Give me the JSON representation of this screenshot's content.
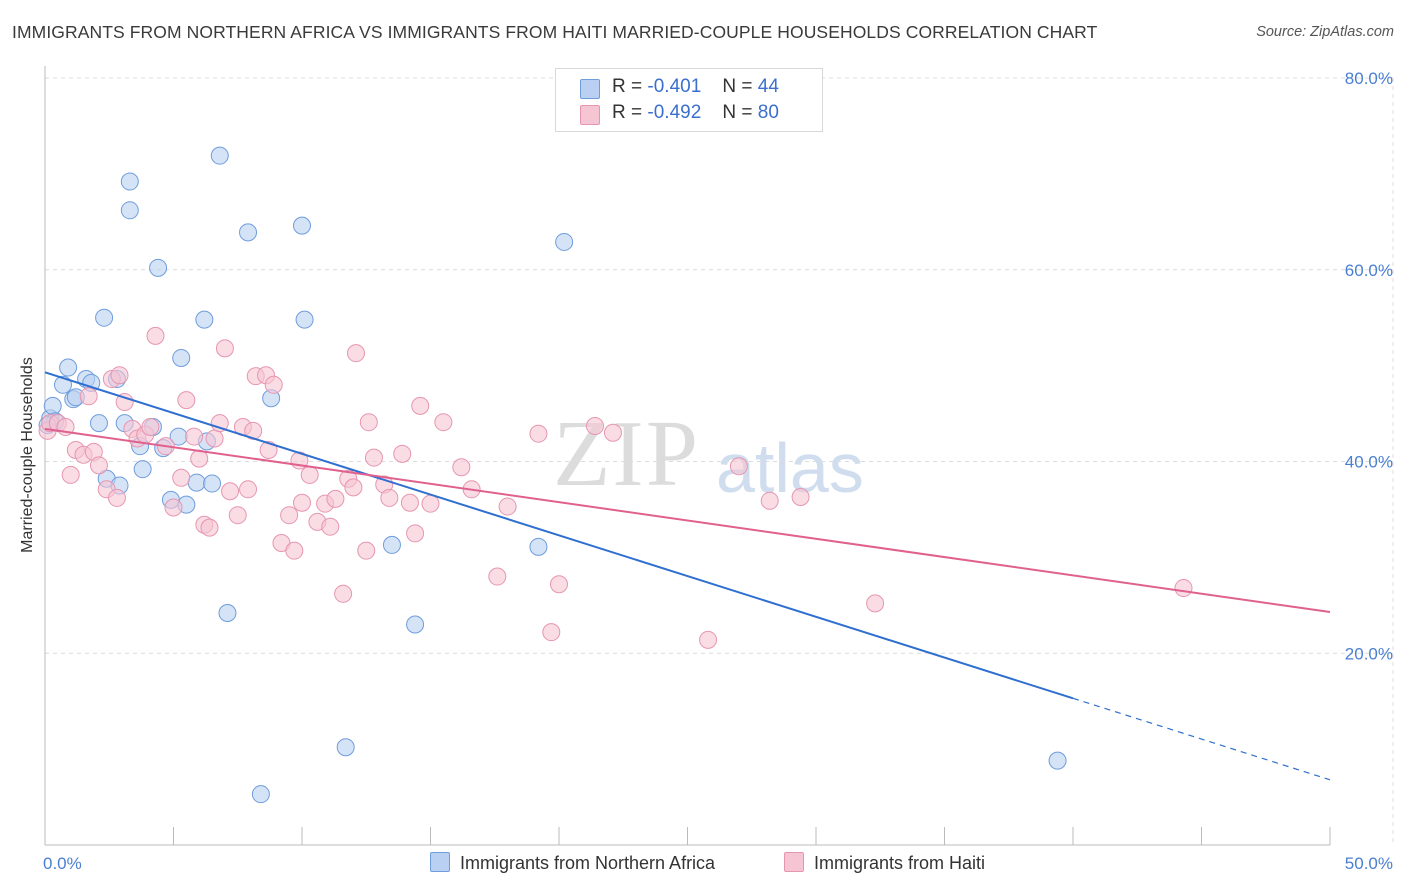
{
  "title": "IMMIGRANTS FROM NORTHERN AFRICA VS IMMIGRANTS FROM HAITI MARRIED-COUPLE HOUSEHOLDS CORRELATION CHART",
  "source": "Source: ZipAtlas.com",
  "watermark": {
    "part1": "ZIP",
    "part2": "atlas"
  },
  "legend_top": {
    "rows": [
      {
        "r_label": "R =",
        "r_value": "-0.401",
        "n_label": "N =",
        "n_value": "44"
      },
      {
        "r_label": "R =",
        "r_value": "-0.492",
        "n_label": "N =",
        "n_value": "80"
      }
    ]
  },
  "colors": {
    "blue_fill": "#b9d0f2",
    "blue_stroke": "#6f9ddc",
    "blue_line": "#2f6fd0",
    "pink_fill": "#f6c5d4",
    "pink_stroke": "#e696b0",
    "pink_line": "#e0608e",
    "tick_label": "#4a7fd0",
    "grid": "#dcdcdc"
  },
  "chart_data": {
    "type": "scatter",
    "xlabel": "",
    "ylabel": "Married-couple Households",
    "xlim": [
      0,
      50
    ],
    "ylim": [
      0,
      80
    ],
    "x_tick_labels": [
      "0.0%",
      "50.0%"
    ],
    "y_ticks": [
      20,
      40,
      60,
      80
    ],
    "y_tick_labels": [
      "20.0%",
      "40.0%",
      "60.0%",
      "80.0%"
    ],
    "x_minor_ticks": [
      0,
      5,
      10,
      15,
      20,
      25,
      30,
      35,
      40,
      45,
      50
    ],
    "grid": true,
    "legend_position": "bottom",
    "series": [
      {
        "name": "Immigrants from Northern Africa",
        "color": "blue",
        "points": [
          [
            0.2,
            44.5
          ],
          [
            0.3,
            45.8
          ],
          [
            0.4,
            44.2
          ],
          [
            0.7,
            48.0
          ],
          [
            0.9,
            49.8
          ],
          [
            1.1,
            46.5
          ],
          [
            1.2,
            46.7
          ],
          [
            1.6,
            48.6
          ],
          [
            1.8,
            48.2
          ],
          [
            2.1,
            44.0
          ],
          [
            2.3,
            55.0
          ],
          [
            2.4,
            38.2
          ],
          [
            2.8,
            48.6
          ],
          [
            2.9,
            37.5
          ],
          [
            3.1,
            44.0
          ],
          [
            3.3,
            69.2
          ],
          [
            3.3,
            66.2
          ],
          [
            3.7,
            41.6
          ],
          [
            3.8,
            39.2
          ],
          [
            4.2,
            43.6
          ],
          [
            4.4,
            60.2
          ],
          [
            4.6,
            41.4
          ],
          [
            4.9,
            36.0
          ],
          [
            5.2,
            42.6
          ],
          [
            5.3,
            50.8
          ],
          [
            5.5,
            35.5
          ],
          [
            5.9,
            37.8
          ],
          [
            6.2,
            54.8
          ],
          [
            6.3,
            42.1
          ],
          [
            6.5,
            37.7
          ],
          [
            6.8,
            71.9
          ],
          [
            7.1,
            24.2
          ],
          [
            7.9,
            63.9
          ],
          [
            8.4,
            5.3
          ],
          [
            8.8,
            46.6
          ],
          [
            10.0,
            64.6
          ],
          [
            10.1,
            54.8
          ],
          [
            11.7,
            10.2
          ],
          [
            13.5,
            31.3
          ],
          [
            14.4,
            23.0
          ],
          [
            19.2,
            31.1
          ],
          [
            20.2,
            62.9
          ],
          [
            39.4,
            8.8
          ],
          [
            0.1,
            43.8
          ]
        ],
        "trend": {
          "x0": 0,
          "y0": 49.3,
          "x1": 40.0,
          "y1": 15.3,
          "dash_to_x": 50,
          "dash_to_y": 6.8
        }
      },
      {
        "name": "Immigrants from Haiti",
        "color": "pink",
        "points": [
          [
            0.1,
            43.2
          ],
          [
            0.2,
            44.0
          ],
          [
            0.5,
            44.0
          ],
          [
            0.8,
            43.6
          ],
          [
            1.0,
            38.6
          ],
          [
            1.2,
            41.2
          ],
          [
            1.5,
            40.7
          ],
          [
            1.7,
            46.8
          ],
          [
            1.9,
            41.0
          ],
          [
            2.1,
            39.6
          ],
          [
            2.4,
            37.1
          ],
          [
            2.6,
            48.6
          ],
          [
            2.9,
            49.0
          ],
          [
            3.1,
            46.2
          ],
          [
            3.4,
            43.4
          ],
          [
            3.6,
            42.4
          ],
          [
            3.9,
            42.8
          ],
          [
            4.1,
            43.6
          ],
          [
            4.3,
            53.1
          ],
          [
            4.7,
            41.6
          ],
          [
            5.0,
            35.2
          ],
          [
            5.3,
            38.3
          ],
          [
            5.5,
            46.4
          ],
          [
            5.8,
            42.6
          ],
          [
            6.0,
            40.3
          ],
          [
            6.2,
            33.4
          ],
          [
            6.4,
            33.1
          ],
          [
            6.6,
            42.4
          ],
          [
            6.8,
            44.0
          ],
          [
            7.0,
            51.8
          ],
          [
            7.2,
            36.9
          ],
          [
            7.5,
            34.4
          ],
          [
            7.7,
            43.6
          ],
          [
            7.9,
            37.1
          ],
          [
            8.1,
            43.2
          ],
          [
            8.2,
            48.9
          ],
          [
            8.6,
            49.0
          ],
          [
            8.7,
            41.2
          ],
          [
            8.9,
            48.0
          ],
          [
            9.2,
            31.5
          ],
          [
            9.5,
            34.4
          ],
          [
            9.7,
            30.7
          ],
          [
            9.9,
            40.1
          ],
          [
            10.0,
            35.7
          ],
          [
            10.3,
            38.6
          ],
          [
            10.6,
            33.7
          ],
          [
            10.9,
            35.6
          ],
          [
            11.3,
            36.1
          ],
          [
            11.6,
            26.2
          ],
          [
            11.8,
            38.2
          ],
          [
            12.0,
            37.3
          ],
          [
            12.1,
            51.3
          ],
          [
            12.5,
            30.7
          ],
          [
            12.6,
            44.1
          ],
          [
            12.8,
            40.4
          ],
          [
            13.2,
            37.6
          ],
          [
            13.4,
            36.2
          ],
          [
            13.9,
            40.8
          ],
          [
            14.2,
            35.7
          ],
          [
            14.4,
            32.5
          ],
          [
            14.6,
            45.8
          ],
          [
            15.0,
            35.6
          ],
          [
            15.5,
            44.1
          ],
          [
            16.2,
            39.4
          ],
          [
            16.6,
            37.1
          ],
          [
            17.6,
            28.0
          ],
          [
            18.0,
            35.3
          ],
          [
            19.2,
            42.9
          ],
          [
            19.7,
            22.2
          ],
          [
            20.0,
            27.2
          ],
          [
            21.4,
            43.7
          ],
          [
            22.1,
            43.0
          ],
          [
            25.8,
            21.4
          ],
          [
            27.0,
            39.5
          ],
          [
            28.2,
            35.9
          ],
          [
            29.4,
            36.3
          ],
          [
            32.3,
            25.2
          ],
          [
            44.3,
            26.8
          ],
          [
            2.8,
            36.2
          ],
          [
            11.1,
            33.2
          ]
        ],
        "trend": {
          "x0": 0,
          "y0": 43.4,
          "x1": 50,
          "y1": 24.3
        }
      }
    ]
  }
}
